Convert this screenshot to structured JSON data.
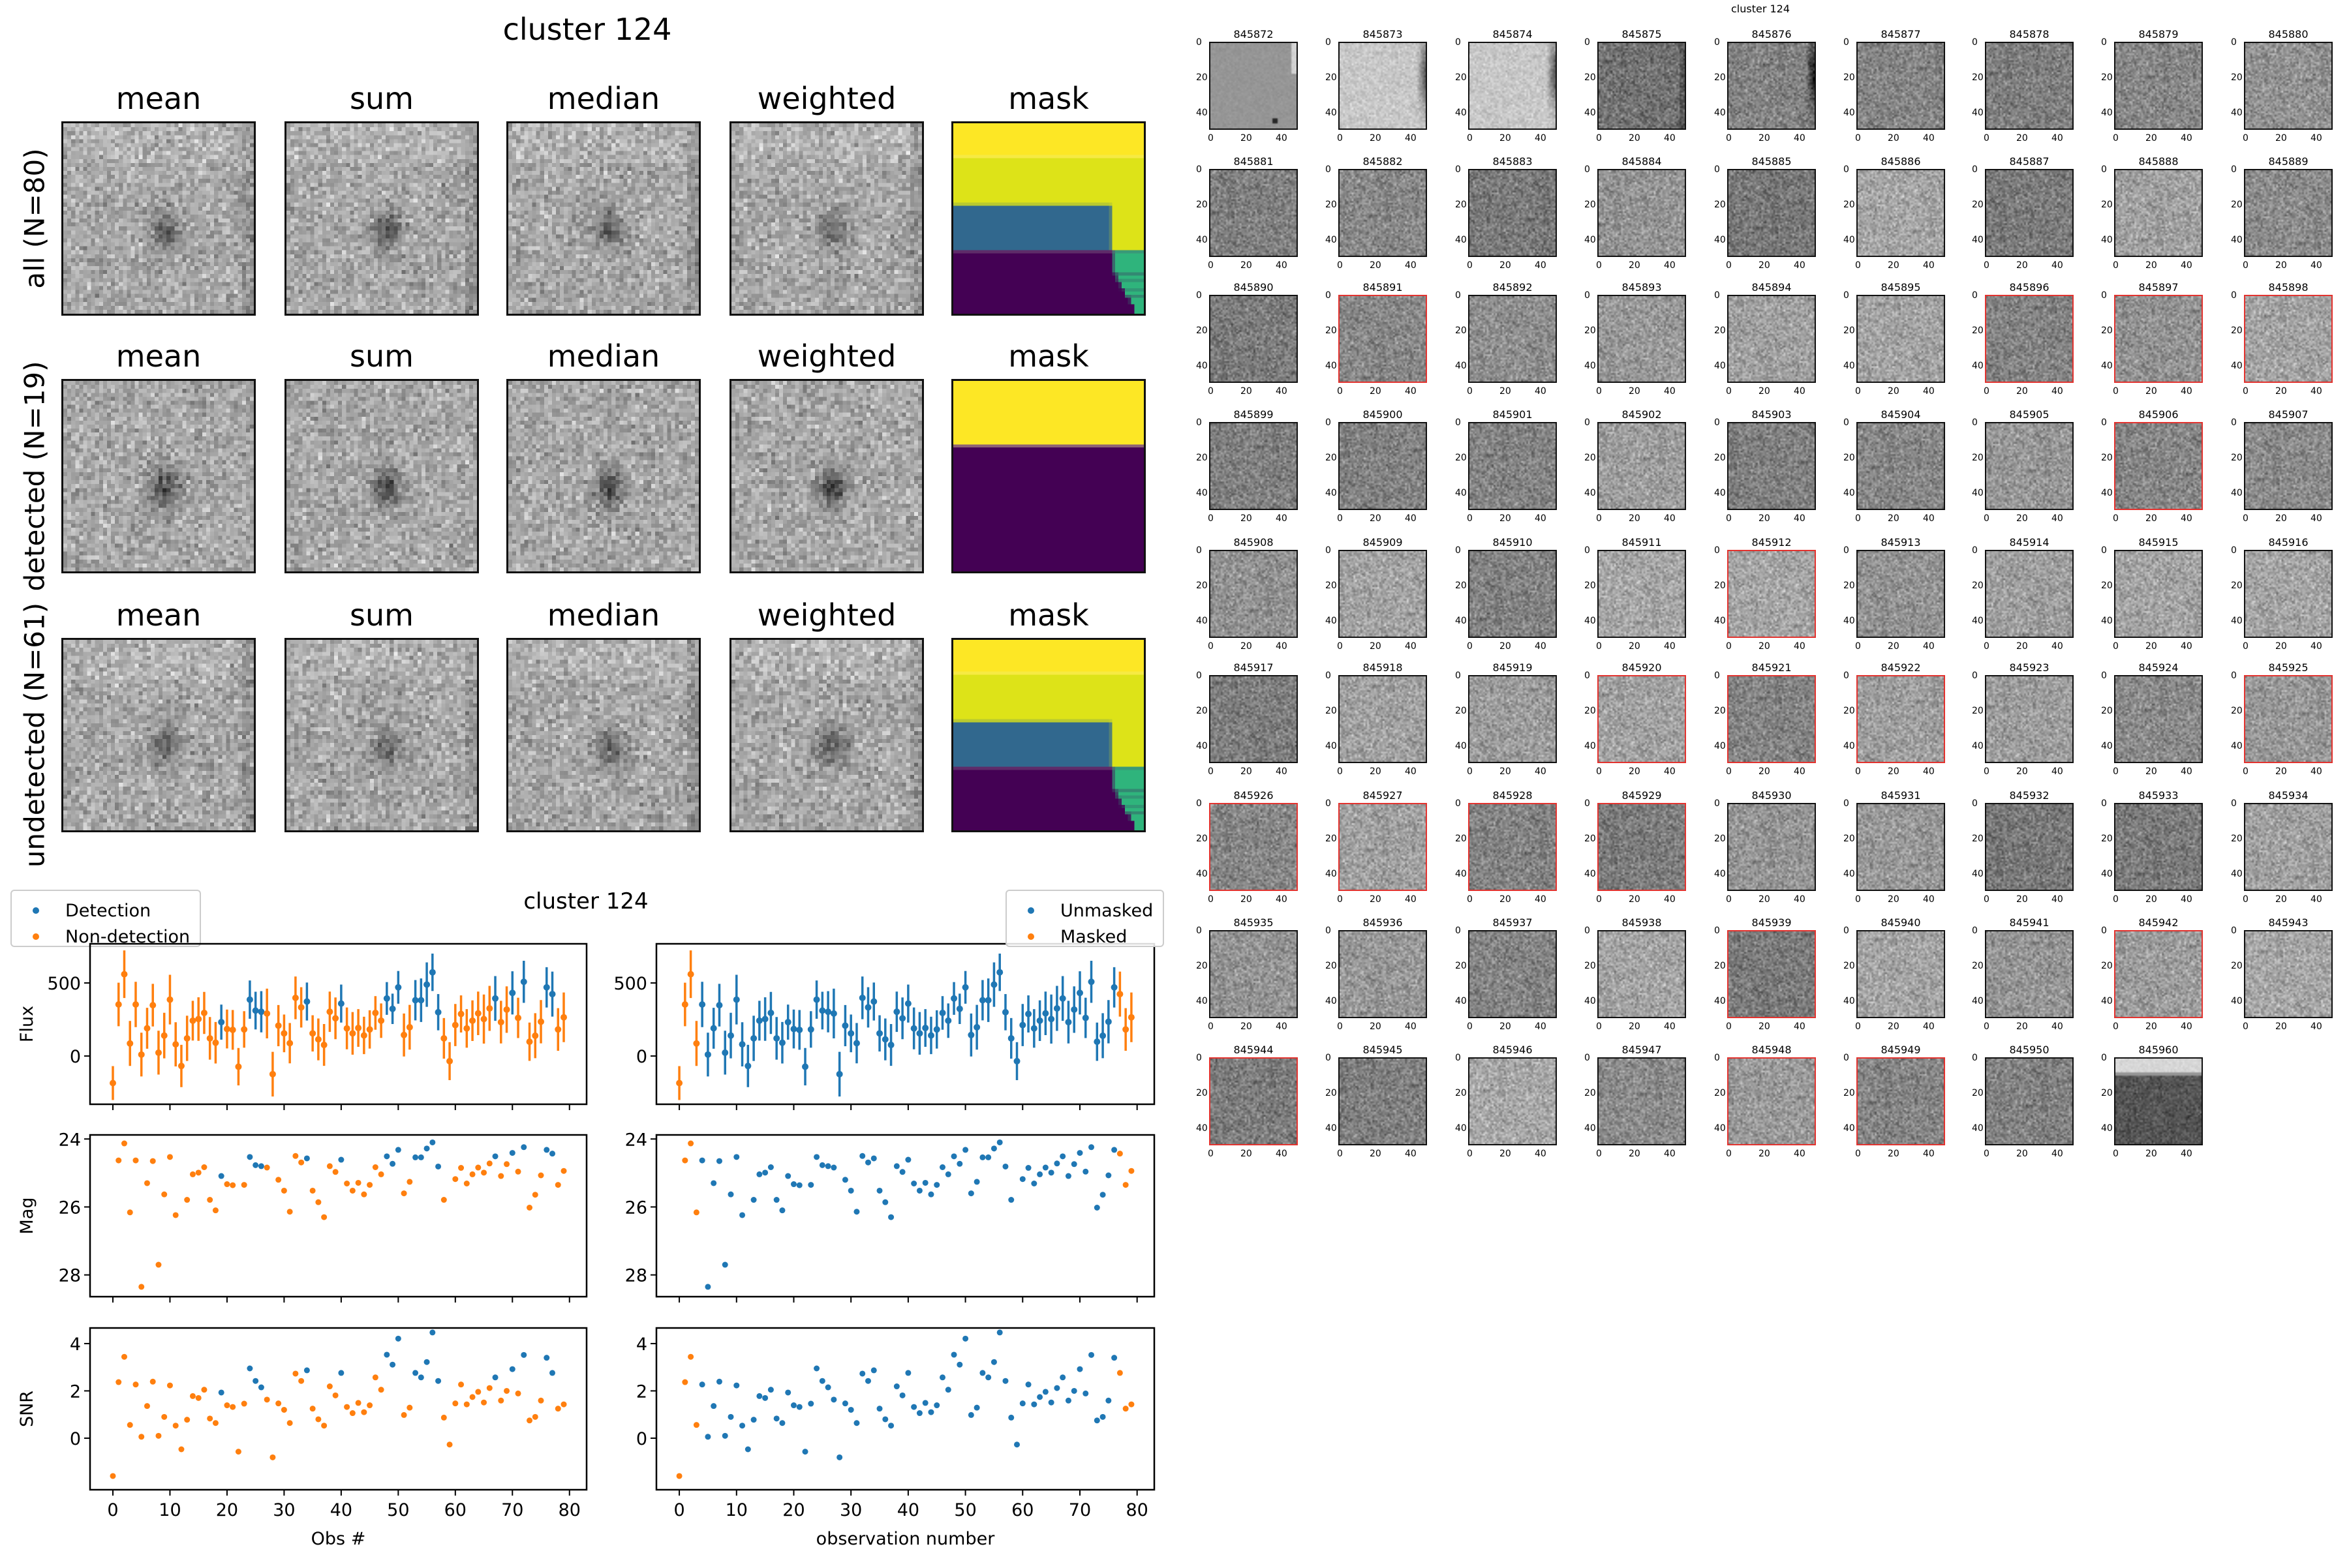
{
  "figure_title": "cluster 124",
  "stamps": {
    "columns": [
      "mean",
      "sum",
      "median",
      "weighted",
      "mask"
    ],
    "rows": [
      "all (N=80)",
      "detected (N=19)",
      "undetected (N=61)"
    ],
    "colormap_image": "gray",
    "colormap_mask": "viridis"
  },
  "lightcurve_title": "cluster 124",
  "legend_left": [
    {
      "name": "Detection",
      "color": "#1f77b4"
    },
    {
      "name": "Non-detection",
      "color": "#ff7f0e"
    }
  ],
  "legend_right": [
    {
      "name": "Unmasked",
      "color": "#1f77b4"
    },
    {
      "name": "Masked",
      "color": "#ff7f0e"
    }
  ],
  "chart_data": {
    "type": "scatter",
    "title": "cluster 124",
    "xlabel_left": "Obs #",
    "xlabel_right": "observation number",
    "ylabels": {
      "flux": "Flux",
      "mag": "Mag",
      "snr": "SNR"
    },
    "xlim": [
      -4,
      83
    ],
    "xticks": [
      0,
      10,
      20,
      30,
      40,
      50,
      60,
      70,
      80
    ],
    "ylim": {
      "flux": [
        -330,
        768
      ],
      "mag": [
        28.64,
        23.88
      ],
      "snr": [
        -2.18,
        4.66
      ]
    },
    "yticks": {
      "flux": [
        0,
        500
      ],
      "mag": [
        24,
        26,
        28
      ],
      "snr": [
        0,
        2,
        4
      ]
    },
    "mag_axis_inverted": true,
    "x": [
      0,
      1,
      2,
      3,
      4,
      5,
      6,
      7,
      8,
      9,
      10,
      11,
      12,
      13,
      14,
      15,
      16,
      17,
      18,
      19,
      20,
      21,
      22,
      23,
      24,
      25,
      26,
      27,
      28,
      29,
      30,
      31,
      32,
      33,
      34,
      35,
      36,
      37,
      38,
      39,
      40,
      41,
      42,
      43,
      44,
      45,
      46,
      47,
      48,
      49,
      50,
      51,
      52,
      53,
      54,
      55,
      56,
      57,
      58,
      59,
      60,
      61,
      62,
      63,
      64,
      65,
      66,
      67,
      68,
      69,
      70,
      71,
      72,
      73,
      74,
      75,
      76,
      77,
      78,
      79
    ],
    "flux": [
      -185,
      353,
      560,
      86,
      353,
      10,
      190,
      348,
      23,
      140,
      386,
      80,
      -68,
      121,
      242,
      253,
      295,
      121,
      91,
      232,
      185,
      179,
      -73,
      182,
      386,
      311,
      303,
      291,
      -124,
      208,
      155,
      88,
      398,
      333,
      373,
      155,
      114,
      76,
      303,
      258,
      359,
      189,
      155,
      192,
      141,
      182,
      295,
      242,
      394,
      323,
      470,
      144,
      197,
      382,
      382,
      489,
      573,
      300,
      121,
      -35,
      212,
      288,
      189,
      242,
      292,
      253,
      326,
      394,
      232,
      318,
      432,
      261,
      508,
      98,
      139,
      235,
      470,
      424,
      182,
      265
    ],
    "flux_err": [
      116,
      149,
      163,
      154,
      155,
      150,
      140,
      146,
      150,
      156,
      170,
      151,
      145,
      155,
      136,
      149,
      144,
      146,
      142,
      120,
      133,
      136,
      128,
      125,
      131,
      129,
      141,
      170,
      153,
      141,
      129,
      138,
      146,
      138,
      130,
      124,
      143,
      143,
      138,
      143,
      130,
      143,
      146,
      129,
      128,
      131,
      115,
      118,
      112,
      104,
      112,
      147,
      153,
      138,
      149,
      152,
      128,
      124,
      139,
      130,
      144,
      127,
      132,
      139,
      149,
      168,
      154,
      153,
      146,
      159,
      148,
      138,
      144,
      131,
      154,
      148,
      138,
      154,
      146,
      170
    ],
    "mag": [
      null,
      24.63,
      24.13,
      26.16,
      24.63,
      28.35,
      25.3,
      24.65,
      27.7,
      25.63,
      24.53,
      26.24,
      null,
      25.79,
      25.04,
      24.99,
      24.83,
      25.79,
      26.1,
      25.09,
      25.33,
      25.36,
      null,
      25.35,
      24.53,
      24.77,
      24.8,
      24.84,
      null,
      25.2,
      25.52,
      26.14,
      24.5,
      24.69,
      24.57,
      25.52,
      25.86,
      26.3,
      24.8,
      24.97,
      24.61,
      25.31,
      25.52,
      25.29,
      25.63,
      25.35,
      24.83,
      25.04,
      24.51,
      24.73,
      24.32,
      25.6,
      25.26,
      24.54,
      24.54,
      24.28,
      24.1,
      24.81,
      25.79,
      null,
      25.18,
      24.85,
      25.31,
      25.04,
      24.84,
      24.99,
      24.72,
      24.51,
      25.09,
      24.74,
      24.41,
      24.96,
      24.24,
      26.02,
      25.64,
      25.07,
      24.32,
      24.43,
      25.35,
      24.94
    ],
    "snr": [
      -1.6,
      2.37,
      3.44,
      0.56,
      2.27,
      0.06,
      1.36,
      2.39,
      0.1,
      0.9,
      2.23,
      0.53,
      -0.47,
      0.78,
      1.78,
      1.7,
      2.05,
      0.83,
      0.64,
      1.93,
      1.39,
      1.32,
      -0.57,
      1.46,
      2.95,
      2.42,
      2.15,
      1.63,
      -0.81,
      1.47,
      1.2,
      0.64,
      2.73,
      2.42,
      2.87,
      1.25,
      0.8,
      0.53,
      2.19,
      1.81,
      2.76,
      1.32,
      1.06,
      1.49,
      1.1,
      1.39,
      2.57,
      2.05,
      3.53,
      3.11,
      4.21,
      0.98,
      1.29,
      2.76,
      2.57,
      3.22,
      4.47,
      2.42,
      0.87,
      -0.27,
      1.47,
      2.27,
      1.43,
      1.74,
      1.96,
      1.51,
      2.12,
      2.57,
      1.59,
      2.0,
      2.92,
      1.89,
      3.52,
      0.75,
      0.9,
      1.59,
      3.4,
      2.76,
      1.25,
      1.43
    ],
    "detected": [
      19,
      24,
      25,
      26,
      34,
      40,
      48,
      49,
      50,
      53,
      54,
      55,
      56,
      57,
      67,
      70,
      72,
      76,
      77
    ],
    "masked": [
      0,
      1,
      2,
      3,
      77,
      78,
      79
    ],
    "colors": {
      "primary": "#1f77b4",
      "secondary": "#ff7f0e"
    }
  },
  "thumbnails": {
    "title": "cluster 124",
    "ids": [
      "845872",
      "845873",
      "845874",
      "845875",
      "845876",
      "845877",
      "845878",
      "845879",
      "845880",
      "845881",
      "845882",
      "845883",
      "845884",
      "845885",
      "845886",
      "845887",
      "845888",
      "845889",
      "845890",
      "845891",
      "845892",
      "845893",
      "845894",
      "845895",
      "845896",
      "845897",
      "845898",
      "845899",
      "845900",
      "845901",
      "845902",
      "845903",
      "845904",
      "845905",
      "845906",
      "845907",
      "845908",
      "845909",
      "845910",
      "845911",
      "845912",
      "845913",
      "845914",
      "845915",
      "845916",
      "845917",
      "845918",
      "845919",
      "845920",
      "845921",
      "845922",
      "845923",
      "845924",
      "845925",
      "845926",
      "845927",
      "845928",
      "845929",
      "845930",
      "845931",
      "845932",
      "845933",
      "845934",
      "845935",
      "845936",
      "845937",
      "845938",
      "845939",
      "845940",
      "845941",
      "845942",
      "845943",
      "845944",
      "845945",
      "845946",
      "845947",
      "845948",
      "845949",
      "845950",
      "845960"
    ],
    "ticks": [
      "0",
      "20",
      "40"
    ],
    "highlight_color": "#e2332f"
  }
}
